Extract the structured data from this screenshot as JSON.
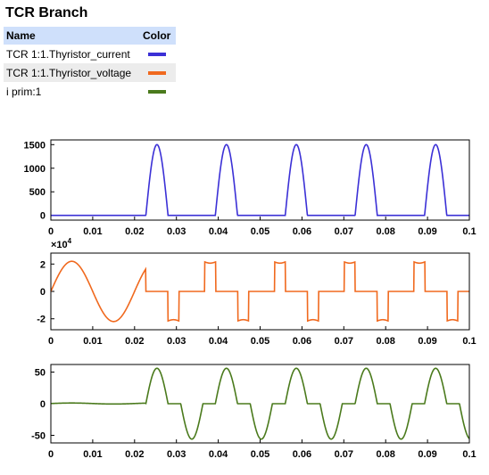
{
  "panel": {
    "title": "TCR Branch",
    "legend_header": {
      "name": "Name",
      "color": "Color"
    },
    "legend": [
      {
        "name": "TCR 1:1.Thyristor_current",
        "color": "#3b30d6"
      },
      {
        "name": "TCR 1:1.Thyristor_voltage",
        "color": "#f0691e"
      },
      {
        "name": "i prim:1",
        "color": "#4a7a1c"
      }
    ]
  },
  "chart_data": [
    {
      "type": "line",
      "series_name": "TCR 1:1.Thyristor_current",
      "color": "#3b30d6",
      "xlim": [
        0,
        0.1
      ],
      "ylim": [
        -100,
        1600
      ],
      "yticks": [
        0,
        500,
        1000,
        1500
      ],
      "ytick_labels": [
        "0",
        "500",
        "1000",
        "1500"
      ],
      "xticks": [
        0,
        0.01,
        0.02,
        0.03,
        0.04,
        0.05,
        0.06,
        0.07,
        0.08,
        0.09,
        0.1
      ],
      "xtick_labels": [
        "0",
        "0.01",
        "0.02",
        "0.03",
        "0.04",
        "0.05",
        "0.06",
        "0.07",
        "0.08",
        "0.09",
        "0.1"
      ],
      "exponent_label": "",
      "description": "conduction pulses, 1500 peak, ~0.0053 s wide",
      "pulse_starts": [
        0.0227,
        0.0393,
        0.056,
        0.0727,
        0.0893
      ],
      "pulse_width": 0.0053,
      "peak": 1500
    },
    {
      "type": "line",
      "series_name": "TCR 1:1.Thyristor_voltage",
      "color": "#f0691e",
      "xlim": [
        0,
        0.1
      ],
      "ylim": [
        -28000,
        28000
      ],
      "yticks": [
        -20000,
        0,
        20000
      ],
      "ytick_labels": [
        "-2",
        "0",
        "2"
      ],
      "xticks": [
        0,
        0.01,
        0.02,
        0.03,
        0.04,
        0.05,
        0.06,
        0.07,
        0.08,
        0.09,
        0.1
      ],
      "xtick_labels": [
        "0",
        "0.01",
        "0.02",
        "0.03",
        "0.04",
        "0.05",
        "0.06",
        "0.07",
        "0.08",
        "0.09",
        "0.1"
      ],
      "exponent_label": "×10",
      "exponent_power": "4",
      "amplitude": 22000,
      "blocking_start": 0.0227
    },
    {
      "type": "line",
      "series_name": "i prim:1",
      "color": "#4a7a1c",
      "xlim": [
        0,
        0.1
      ],
      "ylim": [
        -62,
        62
      ],
      "yticks": [
        -50,
        0,
        50
      ],
      "ytick_labels": [
        "-50",
        "0",
        "50"
      ],
      "xticks": [
        0,
        0.01,
        0.02,
        0.03,
        0.04,
        0.05,
        0.06,
        0.07,
        0.08,
        0.09,
        0.1
      ],
      "xtick_labels": [
        "0",
        "0.01",
        "0.02",
        "0.03",
        "0.04",
        "0.05",
        "0.06",
        "0.07",
        "0.08",
        "0.09",
        "0.1"
      ],
      "exponent_label": "",
      "peak": 56
    }
  ]
}
